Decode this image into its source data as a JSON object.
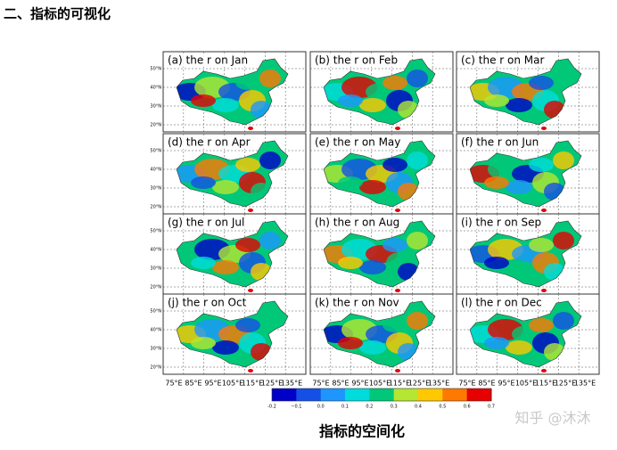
{
  "header": {
    "title": "二、指标的可视化"
  },
  "figure": {
    "panels": [
      {
        "title": "(a) the r on Jan"
      },
      {
        "title": "(b) the r on Feb"
      },
      {
        "title": "(c) the r on Mar"
      },
      {
        "title": "(d) the r on Apr"
      },
      {
        "title": "(e) the r on May"
      },
      {
        "title": "(f) the r on Jun"
      },
      {
        "title": "(g) the r on Jul"
      },
      {
        "title": "(h) the r on Aug"
      },
      {
        "title": "(i) the r on Sep"
      },
      {
        "title": "(j) the r on Oct"
      },
      {
        "title": "(k) the r on Nov"
      },
      {
        "title": "(l) the r on Dec"
      }
    ],
    "lat_labels": [
      "50°N",
      "40°N",
      "30°N",
      "20°N"
    ],
    "lon_labels": [
      "75°E",
      "85°E",
      "95°E",
      "105°E",
      "115°E",
      "125°E",
      "135°E"
    ],
    "colorbar": {
      "ticks": [
        "-0.2",
        "−0.1",
        "0.0",
        "0.1",
        "0.2",
        "0.3",
        "0.4",
        "0.5",
        "0.6",
        "0.7"
      ]
    },
    "caption": "指标的空间化"
  },
  "watermark": "知乎 @沐沐"
}
